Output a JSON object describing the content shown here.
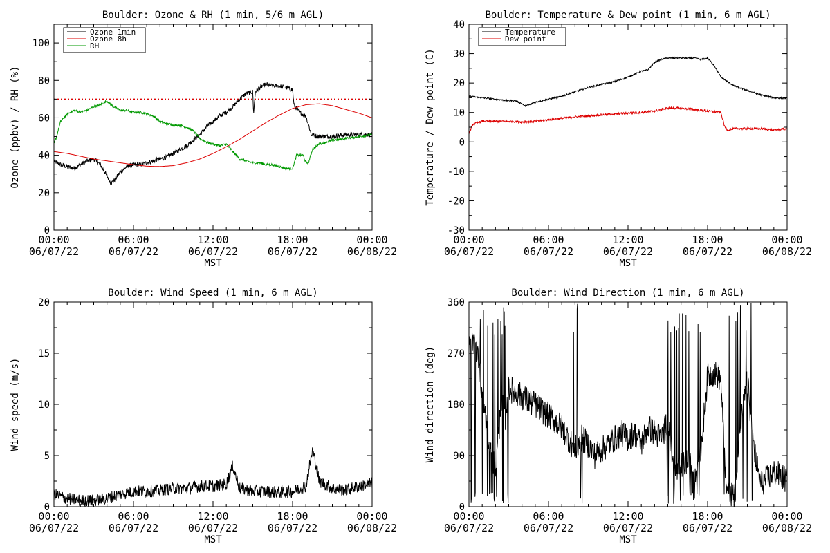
{
  "chart_data": [
    {
      "type": "line",
      "title": "Boulder: Ozone & RH (1 min, 5/6 m AGL)",
      "xlabel": "MST",
      "ylabel": "Ozone (ppbv) / RH (%)",
      "xlim": [
        0,
        24
      ],
      "ylim": [
        0,
        110
      ],
      "x_ticks": [
        {
          "hour": 0,
          "time": "00:00",
          "date": "06/07/22"
        },
        {
          "hour": 6,
          "time": "06:00",
          "date": "06/07/22"
        },
        {
          "hour": 12,
          "time": "12:00",
          "date": "06/07/22"
        },
        {
          "hour": 18,
          "time": "18:00",
          "date": "06/07/22"
        },
        {
          "hour": 24,
          "time": "00:00",
          "date": "06/08/22"
        }
      ],
      "y_ticks": [
        0,
        20,
        40,
        60,
        80,
        100
      ],
      "legend_position": "top-left",
      "reference_lines": [
        {
          "y": 70,
          "color": "#dd0000",
          "style": "dotted"
        }
      ],
      "series": [
        {
          "name": "Ozone 1min",
          "color": "#000000",
          "noise": 1.2,
          "x": [
            0,
            0.5,
            1,
            1.5,
            2,
            2.5,
            3,
            3.5,
            4,
            4.3,
            4.6,
            5,
            5.5,
            6,
            6.5,
            7,
            7.5,
            8,
            8.5,
            9,
            9.5,
            10,
            10.5,
            11,
            11.5,
            12,
            12.5,
            13,
            13.5,
            14,
            14.5,
            15,
            15.05,
            15.2,
            15.5,
            16,
            16.5,
            17,
            17.5,
            18,
            18.1,
            18.5,
            19,
            19.3,
            19.4,
            20,
            21,
            22,
            23,
            24
          ],
          "y": [
            37,
            35,
            34,
            33,
            35,
            37,
            38,
            35,
            29,
            25,
            27,
            31,
            34,
            35,
            35,
            36,
            37,
            38,
            39,
            41,
            43,
            45,
            48,
            51,
            55,
            58,
            61,
            63,
            66,
            70,
            73,
            74,
            62,
            74,
            76,
            78,
            77,
            77,
            76,
            75,
            67,
            63,
            61,
            54,
            51,
            50,
            50,
            51,
            51,
            51
          ]
        },
        {
          "name": "Ozone 8h",
          "color": "#dd0000",
          "noise": 0,
          "x": [
            0,
            1,
            2,
            3,
            4,
            5,
            6,
            7,
            8,
            9,
            10,
            11,
            12,
            13,
            14,
            15,
            16,
            17,
            18,
            19,
            20,
            21,
            22,
            23,
            24
          ],
          "y": [
            42,
            41,
            39.5,
            38,
            37,
            36,
            35,
            34.2,
            34,
            34.5,
            36,
            38,
            41,
            44.5,
            48.5,
            53,
            57.5,
            61.5,
            65,
            67,
            67.5,
            66.5,
            64.5,
            62.5,
            60
          ]
        },
        {
          "name": "RH",
          "color": "#009900",
          "noise": 0.6,
          "x": [
            0,
            0.2,
            0.5,
            1,
            1.5,
            2,
            2.5,
            3,
            3.5,
            4,
            4.5,
            5,
            5.5,
            6,
            6.5,
            7,
            7.5,
            8,
            8.5,
            9,
            9.5,
            10,
            10.5,
            11,
            11.5,
            12,
            12.5,
            13,
            13.5,
            14,
            14.5,
            15,
            15.5,
            16,
            16.5,
            17,
            17.5,
            18,
            18.3,
            18.8,
            19,
            19.2,
            19.5,
            20,
            21,
            22,
            23,
            24
          ],
          "y": [
            46,
            50,
            58,
            62,
            64,
            63,
            64,
            66,
            67,
            69,
            66,
            64,
            64,
            63,
            63,
            62,
            61,
            58,
            57,
            56,
            56,
            55,
            53,
            49,
            47,
            46,
            45,
            46,
            42,
            38,
            37,
            36,
            36,
            35,
            35,
            34,
            33,
            33,
            40,
            40,
            36,
            36,
            43,
            46,
            48,
            49,
            50,
            51
          ]
        }
      ]
    },
    {
      "type": "line",
      "title": "Boulder: Temperature & Dew point (1 min, 6 m AGL)",
      "xlabel": "MST",
      "ylabel": "Temperature / Dew point (C)",
      "xlim": [
        0,
        24
      ],
      "ylim": [
        -30,
        40
      ],
      "x_ticks": [
        {
          "hour": 0,
          "time": "00:00",
          "date": "06/07/22"
        },
        {
          "hour": 6,
          "time": "06:00",
          "date": "06/07/22"
        },
        {
          "hour": 12,
          "time": "12:00",
          "date": "06/07/22"
        },
        {
          "hour": 18,
          "time": "18:00",
          "date": "06/07/22"
        },
        {
          "hour": 24,
          "time": "00:00",
          "date": "06/08/22"
        }
      ],
      "y_ticks": [
        -30,
        -20,
        -10,
        0,
        10,
        20,
        30,
        40
      ],
      "legend_position": "top-left",
      "reference_lines": [],
      "series": [
        {
          "name": "Temperature",
          "color": "#000000",
          "noise": 0.25,
          "x": [
            0,
            1,
            2,
            3,
            3.5,
            4,
            4.2,
            4.5,
            5,
            6,
            7,
            8,
            9,
            10,
            11,
            12,
            12.5,
            13,
            13.5,
            14,
            14.5,
            15,
            16,
            17,
            17.5,
            18,
            18.5,
            19,
            19.5,
            20,
            21,
            22,
            23,
            24
          ],
          "y": [
            15.5,
            15,
            14.5,
            14,
            14,
            13,
            12.2,
            12.5,
            13.5,
            14.5,
            15.5,
            17,
            18.5,
            19.5,
            20.5,
            22,
            23,
            24,
            24.5,
            27,
            28,
            28.5,
            28.5,
            28.5,
            28,
            28.5,
            26,
            22,
            20.5,
            19,
            17.5,
            16,
            15,
            14.8
          ]
        },
        {
          "name": "Dew point",
          "color": "#dd0000",
          "noise": 0.35,
          "x": [
            0,
            0.3,
            1,
            2,
            3,
            4,
            5,
            6,
            7,
            8,
            9,
            10,
            11,
            12,
            13,
            14,
            15,
            16,
            17,
            18,
            19,
            19.3,
            19.5,
            20,
            21,
            22,
            23,
            24
          ],
          "y": [
            3,
            6,
            7,
            7,
            7,
            6.8,
            7,
            7.5,
            8,
            8.5,
            8.8,
            9.2,
            9.5,
            9.8,
            10,
            10.5,
            11.5,
            11.5,
            11,
            10.5,
            10,
            5,
            4,
            4.5,
            4.5,
            4.5,
            4,
            4.5
          ]
        }
      ]
    },
    {
      "type": "line",
      "title": "Boulder: Wind Speed (1 min, 6 m AGL)",
      "xlabel": "MST",
      "ylabel": "Wind speed (m/s)",
      "xlim": [
        0,
        24
      ],
      "ylim": [
        0,
        20
      ],
      "x_ticks": [
        {
          "hour": 0,
          "time": "00:00",
          "date": "06/07/22"
        },
        {
          "hour": 6,
          "time": "06:00",
          "date": "06/07/22"
        },
        {
          "hour": 12,
          "time": "12:00",
          "date": "06/07/22"
        },
        {
          "hour": 18,
          "time": "18:00",
          "date": "06/07/22"
        },
        {
          "hour": 24,
          "time": "00:00",
          "date": "06/08/22"
        }
      ],
      "y_ticks": [
        0,
        5,
        10,
        15,
        20
      ],
      "legend_position": "none",
      "reference_lines": [],
      "series": [
        {
          "name": "",
          "color": "#000000",
          "noise": 0.6,
          "x": [
            0,
            1,
            2,
            3,
            4,
            5,
            6,
            7,
            8,
            9,
            10,
            11,
            12,
            13,
            13.5,
            14,
            15,
            16,
            17,
            18,
            19,
            19.5,
            19.8,
            20,
            21,
            22,
            23,
            24
          ],
          "y": [
            1.2,
            0.8,
            0.6,
            0.6,
            0.8,
            1.2,
            1.5,
            1.5,
            1.6,
            1.8,
            1.8,
            2,
            2,
            2.2,
            4,
            1.8,
            1.5,
            1.5,
            1.4,
            1.5,
            2,
            5.5,
            4,
            2.5,
            1.8,
            1.6,
            2,
            2.3
          ]
        }
      ]
    },
    {
      "type": "line",
      "title": "Boulder: Wind Direction (1 min, 6 m AGL)",
      "xlabel": "MST",
      "ylabel": "Wind direction (deg)",
      "xlim": [
        0,
        24
      ],
      "ylim": [
        0,
        360
      ],
      "x_ticks": [
        {
          "hour": 0,
          "time": "00:00",
          "date": "06/07/22"
        },
        {
          "hour": 6,
          "time": "06:00",
          "date": "06/07/22"
        },
        {
          "hour": 12,
          "time": "12:00",
          "date": "06/07/22"
        },
        {
          "hour": 18,
          "time": "18:00",
          "date": "06/07/22"
        },
        {
          "hour": 24,
          "time": "00:00",
          "date": "06/08/22"
        }
      ],
      "y_ticks": [
        0,
        90,
        180,
        270,
        360
      ],
      "legend_position": "none",
      "reference_lines": [],
      "series": [
        {
          "name": "",
          "color": "#000000",
          "noise": 8,
          "x": [
            0,
            0.5,
            1,
            1.5,
            2,
            2.5,
            2.8,
            3,
            3.5,
            4,
            4.5,
            5,
            5.5,
            6,
            6.5,
            7,
            7.5,
            8,
            8.5,
            9,
            9.5,
            10,
            10.5,
            11,
            11.5,
            12,
            12.5,
            13,
            13.5,
            14,
            14.5,
            15,
            15.5,
            16,
            16.5,
            17,
            17.5,
            18,
            18.5,
            19,
            19.3,
            19.5,
            20,
            20.5,
            21,
            21.5,
            22,
            22.5,
            23,
            23.5,
            24
          ],
          "y": [
            280,
            290,
            200,
            120,
            60,
            200,
            150,
            210,
            200,
            195,
            185,
            180,
            170,
            160,
            150,
            140,
            120,
            100,
            120,
            110,
            90,
            100,
            110,
            120,
            130,
            120,
            130,
            110,
            140,
            130,
            120,
            150,
            60,
            70,
            80,
            60,
            100,
            230,
            235,
            225,
            70,
            30,
            20,
            150,
            220,
            100,
            40,
            50,
            60,
            55,
            45
          ]
        }
      ]
    }
  ]
}
